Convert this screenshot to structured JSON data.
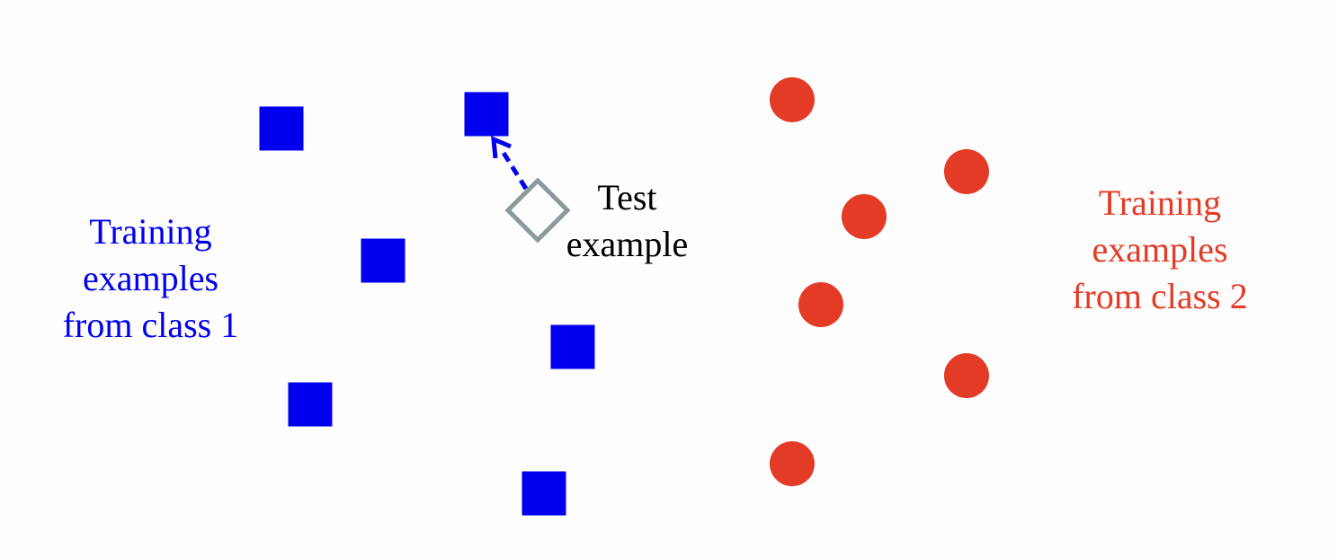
{
  "colors": {
    "class1": "#0000ee",
    "class2": "#e33b26",
    "test": "#8c9a9e",
    "text": "#000000",
    "background": "#fdfdfd"
  },
  "labels": {
    "class1": [
      "Training",
      "examples",
      "from class 1"
    ],
    "class2": [
      "Training",
      "examples",
      "from class 2"
    ],
    "test": [
      "Test",
      "example"
    ]
  },
  "icons": {
    "class1_marker": "square",
    "class2_marker": "circle",
    "test_marker": "diamond-outline",
    "nearest_neighbor_link": "dashed-arrow"
  }
}
